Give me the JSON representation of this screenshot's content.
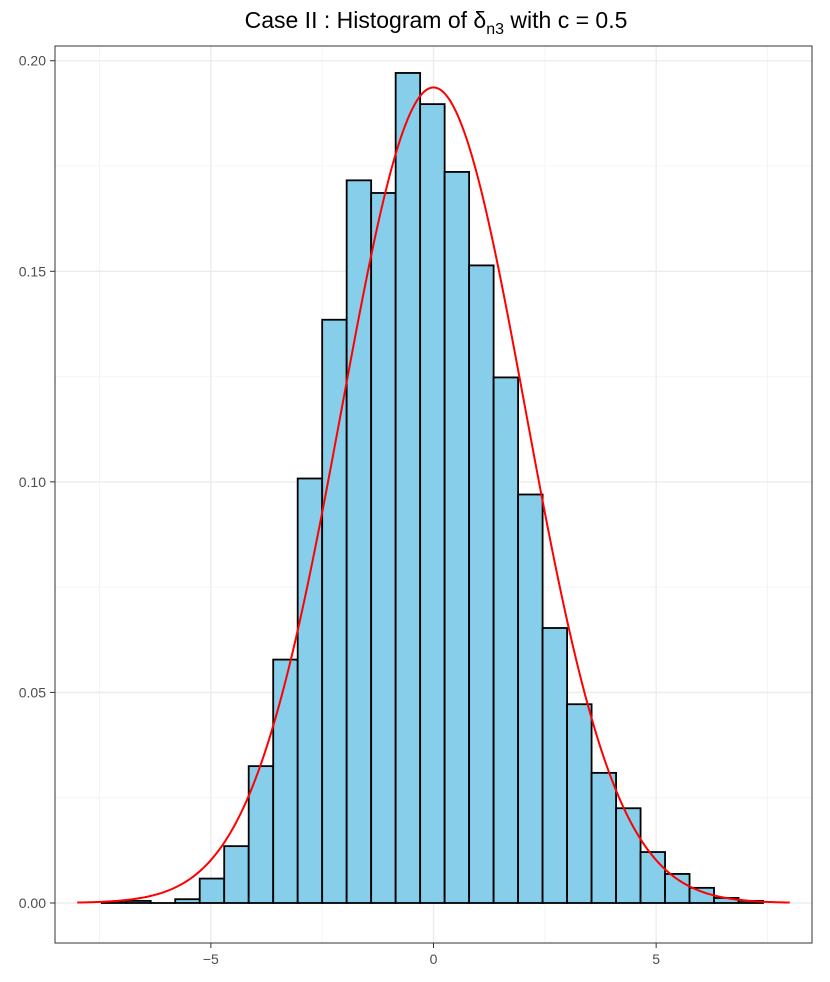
{
  "chart_data": {
    "type": "bar",
    "title": {
      "prefix": "Case II :  Histogram of ",
      "symbol": "δ",
      "subscript": "n3",
      "suffix": " with c = 0.5"
    },
    "xlabel": "",
    "ylabel": "",
    "xlim": [
      -8.5,
      8.5
    ],
    "ylim": [
      -0.0095,
      0.2035
    ],
    "x_ticks": [
      -5,
      0,
      5
    ],
    "x_tick_labels": [
      "−5",
      "0",
      "5"
    ],
    "y_ticks": [
      0.0,
      0.05,
      0.1,
      0.15,
      0.2
    ],
    "y_tick_labels": [
      "0.00",
      "0.05",
      "0.10",
      "0.15",
      "0.20"
    ],
    "grid": true,
    "bin_width": 0.55,
    "bins": [
      {
        "x0": -7.45,
        "x1": -6.9,
        "value": 0.0002
      },
      {
        "x0": -6.9,
        "x1": -6.35,
        "value": 0.0005
      },
      {
        "x0": -6.35,
        "x1": -5.8,
        "value": 0.0
      },
      {
        "x0": -5.8,
        "x1": -5.25,
        "value": 0.0009
      },
      {
        "x0": -5.25,
        "x1": -4.7,
        "value": 0.0058
      },
      {
        "x0": -4.7,
        "x1": -4.15,
        "value": 0.0135
      },
      {
        "x0": -4.15,
        "x1": -3.6,
        "value": 0.0325
      },
      {
        "x0": -3.6,
        "x1": -3.05,
        "value": 0.0578
      },
      {
        "x0": -3.05,
        "x1": -2.5,
        "value": 0.1008
      },
      {
        "x0": -2.5,
        "x1": -1.95,
        "value": 0.1385
      },
      {
        "x0": -1.95,
        "x1": -1.4,
        "value": 0.1716
      },
      {
        "x0": -1.4,
        "x1": -0.85,
        "value": 0.1686
      },
      {
        "x0": -0.85,
        "x1": -0.3,
        "value": 0.1971
      },
      {
        "x0": -0.3,
        "x1": 0.25,
        "value": 0.1897
      },
      {
        "x0": 0.25,
        "x1": 0.8,
        "value": 0.1736
      },
      {
        "x0": 0.8,
        "x1": 1.35,
        "value": 0.1514
      },
      {
        "x0": 1.35,
        "x1": 1.9,
        "value": 0.1248
      },
      {
        "x0": 1.9,
        "x1": 2.45,
        "value": 0.097
      },
      {
        "x0": 2.45,
        "x1": 3.0,
        "value": 0.0653
      },
      {
        "x0": 3.0,
        "x1": 3.55,
        "value": 0.0472
      },
      {
        "x0": 3.55,
        "x1": 4.1,
        "value": 0.0309
      },
      {
        "x0": 4.1,
        "x1": 4.65,
        "value": 0.0225
      },
      {
        "x0": 4.65,
        "x1": 5.2,
        "value": 0.0121
      },
      {
        "x0": 5.2,
        "x1": 5.75,
        "value": 0.0069
      },
      {
        "x0": 5.75,
        "x1": 6.3,
        "value": 0.0036
      },
      {
        "x0": 6.3,
        "x1": 6.85,
        "value": 0.0012
      },
      {
        "x0": 6.85,
        "x1": 7.4,
        "value": 0.0005
      }
    ],
    "density_curve": {
      "type": "normal",
      "mean": 0,
      "sd": 2.06,
      "x_range": [
        -8,
        8
      ]
    },
    "colors": {
      "bar_fill": "#87ceeb",
      "bar_stroke": "#000000",
      "curve": "#ff0000",
      "grid_major": "#ebebeb",
      "grid_minor": "#f4f4f4",
      "panel_border": "#333333",
      "tick_text": "#4d4d4d"
    }
  }
}
